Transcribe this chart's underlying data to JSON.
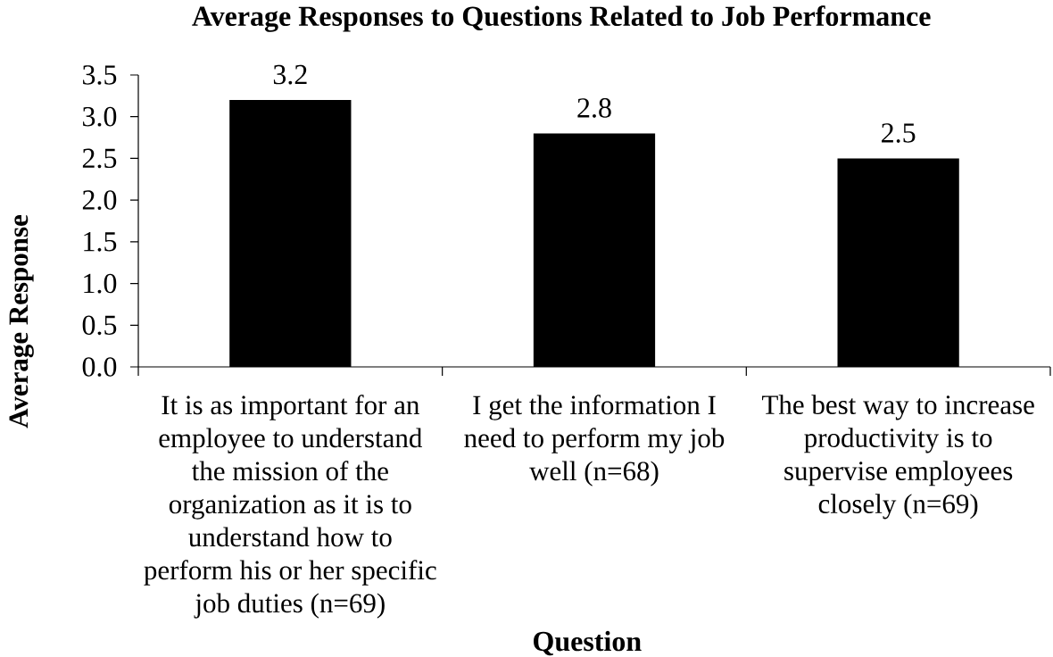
{
  "chart_data": {
    "type": "bar",
    "title": "Average Responses to Questions Related to Job Performance",
    "xlabel": "Question",
    "ylabel": "Average Response",
    "categories": [
      "It is as important for an employee to understand the mission of the organization as it is to understand how to perform his or her specific job duties (n=69)",
      "I get the information I need to perform my job well (n=68)",
      "The best way to increase productivity is to supervise employees closely (n=69)"
    ],
    "values": [
      3.2,
      2.8,
      2.5
    ],
    "color": "#000000",
    "data_labels": true,
    "ylim": [
      0,
      3.5
    ],
    "yticks": [
      {
        "value": 0,
        "label": "0.0"
      },
      {
        "value": 0.5,
        "label": "0.5"
      },
      {
        "value": 1,
        "label": "1.0"
      },
      {
        "value": 1.5,
        "label": "1.5"
      },
      {
        "value": 2,
        "label": "2.0"
      },
      {
        "value": 2.5,
        "label": "2.5"
      },
      {
        "value": 3,
        "label": "3.0"
      },
      {
        "value": 3.5,
        "label": "3.5"
      }
    ]
  }
}
